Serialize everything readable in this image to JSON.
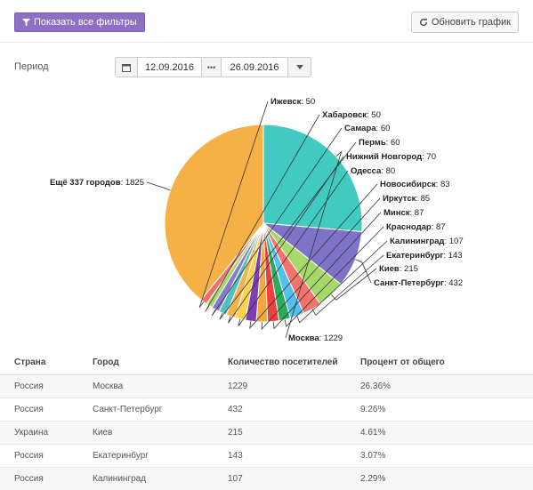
{
  "toolbar": {
    "filters_label": "Показать все фильтры",
    "refresh_label": "Обновить график"
  },
  "period": {
    "label": "Период",
    "from": "12.09.2016",
    "to": "26.09.2016",
    "separator": "•••"
  },
  "chart_data": {
    "type": "pie",
    "slices": [
      {
        "name": "Москва",
        "value": 1229,
        "color": "#41cbc0"
      },
      {
        "name": "Санкт-Петербург",
        "value": 432,
        "color": "#7f73c9"
      },
      {
        "name": "Киев",
        "value": 215,
        "color": "#a6d96a"
      },
      {
        "name": "Екатеринбург",
        "value": 143,
        "color": "#f4736b"
      },
      {
        "name": "Калининград",
        "value": 107,
        "color": "#53c1ee"
      },
      {
        "name": "Краснодар",
        "value": 87,
        "color": "#2bab5c"
      },
      {
        "name": "Минск",
        "value": 87,
        "color": "#ef3f3f"
      },
      {
        "name": "Иркутск",
        "value": 85,
        "color": "#f3a73e"
      },
      {
        "name": "Новосибирск",
        "value": 83,
        "color": "#7d3fb0"
      },
      {
        "name": "Одесса",
        "value": 80,
        "color": "#ffd24d"
      },
      {
        "name": "Нижний Новгород",
        "value": 70,
        "color": "#f5b349"
      },
      {
        "name": "Пермь",
        "value": 60,
        "color": "#4fc1bf"
      },
      {
        "name": "Самара",
        "value": 60,
        "color": "#8a79cf"
      },
      {
        "name": "Хабаровск",
        "value": 50,
        "color": "#a6d96a"
      },
      {
        "name": "Ижевск",
        "value": 50,
        "color": "#f06d6d"
      },
      {
        "name": "Ещё 337 городов",
        "value": 1825,
        "color": "#f5b145"
      }
    ]
  },
  "table": {
    "headers": [
      "Страна",
      "Город",
      "Количество посетителей",
      "Процент от общего"
    ],
    "rows": [
      [
        "Россия",
        "Москва",
        "1229",
        "26.36%"
      ],
      [
        "Россия",
        "Санкт-Петербург",
        "432",
        "9.26%"
      ],
      [
        "Украина",
        "Киев",
        "215",
        "4.61%"
      ],
      [
        "Россия",
        "Екатеринбург",
        "143",
        "3.07%"
      ],
      [
        "Россия",
        "Калининград",
        "107",
        "2.29%"
      ]
    ]
  }
}
